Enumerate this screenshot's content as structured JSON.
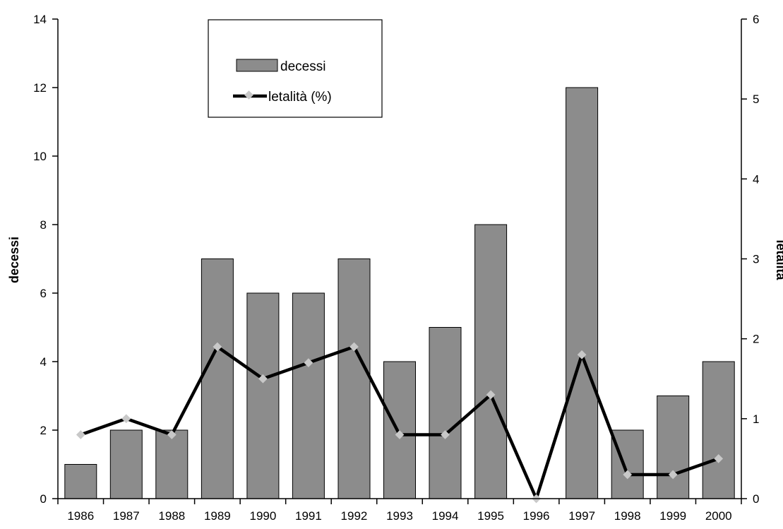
{
  "chart_data": {
    "type": "bar",
    "categories": [
      "1986",
      "1987",
      "1988",
      "1989",
      "1990",
      "1991",
      "1992",
      "1993",
      "1994",
      "1995",
      "1996",
      "1997",
      "1998",
      "1999",
      "2000"
    ],
    "series": [
      {
        "name": "decessi",
        "type": "bar",
        "axis": "left",
        "values": [
          1,
          2,
          2,
          7,
          6,
          6,
          7,
          4,
          5,
          8,
          0,
          12,
          2,
          3,
          4
        ]
      },
      {
        "name": "letalità (%)",
        "type": "line",
        "axis": "right",
        "values": [
          0.8,
          1.0,
          0.8,
          1.9,
          1.5,
          1.7,
          1.9,
          0.8,
          0.8,
          1.3,
          0.0,
          1.8,
          0.3,
          0.3,
          0.5
        ]
      }
    ],
    "ylabel": "decessi",
    "y2label": "letalità",
    "ylim": [
      0,
      14
    ],
    "y2lim": [
      0,
      6
    ],
    "yticks": [
      0,
      2,
      4,
      6,
      8,
      10,
      12,
      14
    ],
    "y2ticks": [
      0,
      1,
      2,
      3,
      4,
      5,
      6
    ],
    "grid": false,
    "legend_position": "top-center",
    "colors": {
      "bar_fill": "#8c8c8c",
      "bar_stroke": "#000000",
      "line": "#000000",
      "marker": "#c8c8c8"
    }
  }
}
